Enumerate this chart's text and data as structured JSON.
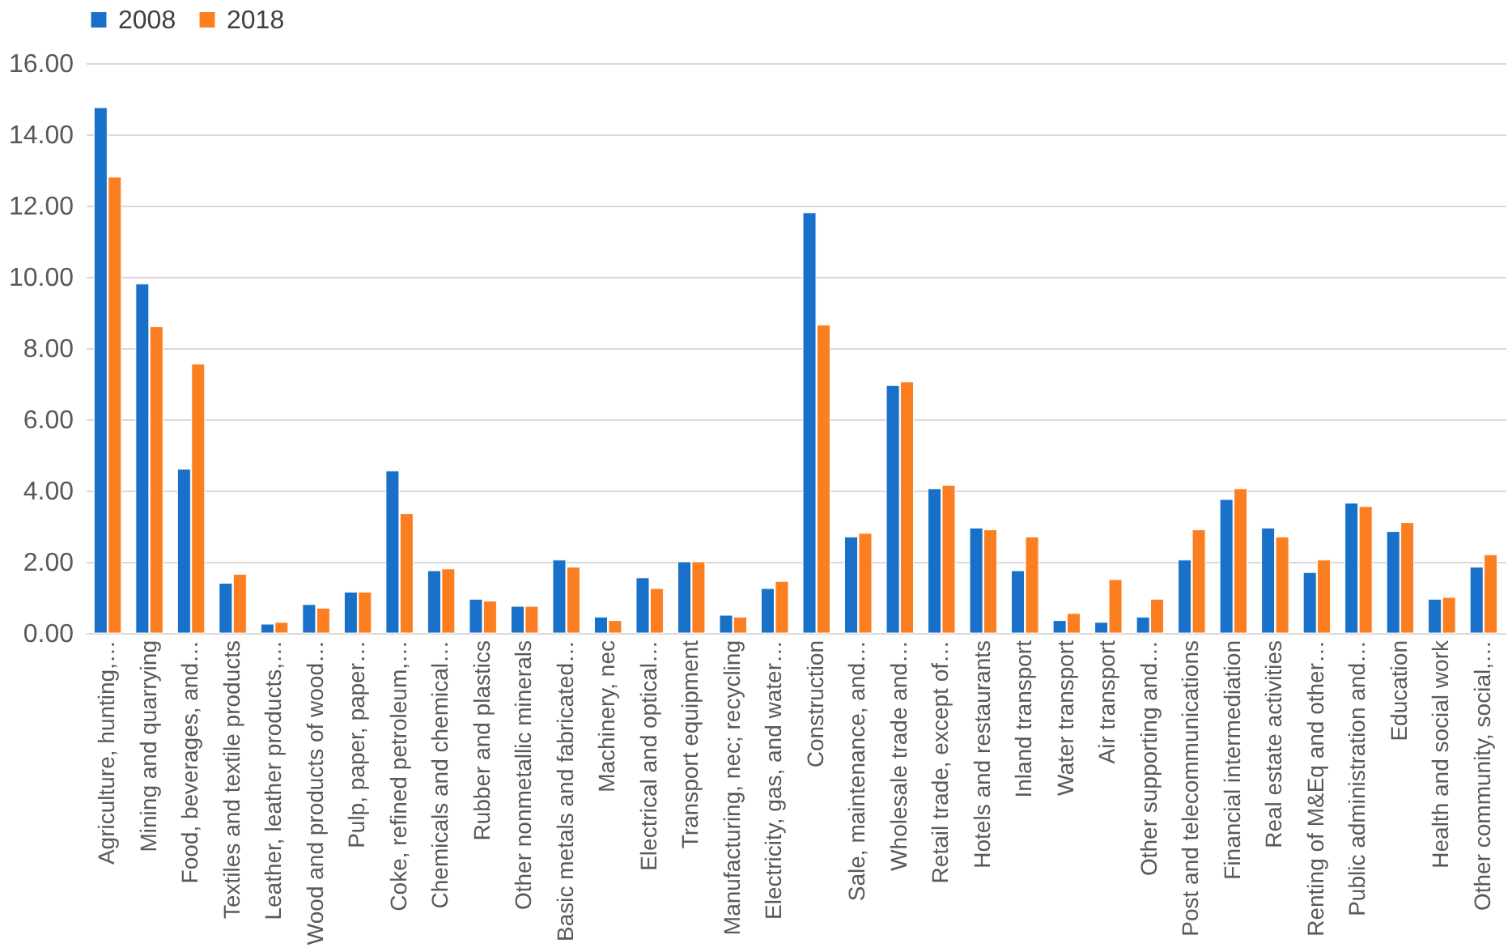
{
  "chart_data": {
    "type": "bar",
    "categories": [
      "Agriculture, hunting,…",
      "Mining and quarrying",
      "Food, beverages, and…",
      "Textiles and textile products",
      "Leather, leather products,…",
      "Wood and products of wood…",
      "Pulp, paper, paper…",
      "Coke, refined petroleum,…",
      "Chemicals and chemical…",
      "Rubber and plastics",
      "Other nonmetallic minerals",
      "Basic metals and fabricated…",
      "Machinery, nec",
      "Electrical and optical…",
      "Transport equipment",
      "Manufacturing, nec; recycling",
      "Electricity, gas, and water…",
      "Construction",
      "Sale, maintenance, and…",
      "Wholesale trade and…",
      "Retail trade, except of…",
      "Hotels and restaurants",
      "Inland transport",
      "Water transport",
      "Air transport",
      "Other supporting and…",
      "Post and telecommunications",
      "Financial intermediation",
      "Real estate activities",
      "Renting of M&Eq and other…",
      "Public administration and…",
      "Education",
      "Health and social work",
      "Other community, social,…"
    ],
    "series": [
      {
        "name": "2008",
        "color": "#1870c8",
        "values": [
          14.75,
          9.8,
          4.6,
          1.4,
          0.25,
          0.8,
          1.15,
          4.55,
          1.75,
          0.95,
          0.75,
          2.05,
          0.45,
          1.55,
          2.0,
          0.5,
          1.25,
          11.8,
          2.7,
          6.95,
          4.05,
          2.95,
          1.75,
          0.35,
          0.3,
          0.45,
          2.05,
          3.75,
          2.95,
          1.7,
          3.65,
          2.85,
          0.95,
          1.85
        ]
      },
      {
        "name": "2018",
        "color": "#fb7f20",
        "values": [
          12.8,
          8.6,
          7.55,
          1.65,
          0.3,
          0.7,
          1.15,
          3.35,
          1.8,
          0.9,
          0.75,
          1.85,
          0.35,
          1.25,
          2.0,
          0.45,
          1.45,
          8.65,
          2.8,
          7.05,
          4.15,
          2.9,
          2.7,
          0.55,
          1.5,
          0.95,
          2.9,
          4.05,
          2.7,
          2.05,
          3.55,
          3.1,
          1.0,
          2.2
        ]
      }
    ],
    "ylim": [
      0,
      16
    ],
    "yticks": [
      {
        "value": 0,
        "label": "0.00"
      },
      {
        "value": 2,
        "label": "2.00"
      },
      {
        "value": 4,
        "label": "4.00"
      },
      {
        "value": 6,
        "label": "6.00"
      },
      {
        "value": 8,
        "label": "8.00"
      },
      {
        "value": 10,
        "label": "10.00"
      },
      {
        "value": 12,
        "label": "12.00"
      },
      {
        "value": 14,
        "label": "14.00"
      },
      {
        "value": 16,
        "label": "16.00"
      }
    ],
    "grid": "y",
    "legend": "top"
  }
}
